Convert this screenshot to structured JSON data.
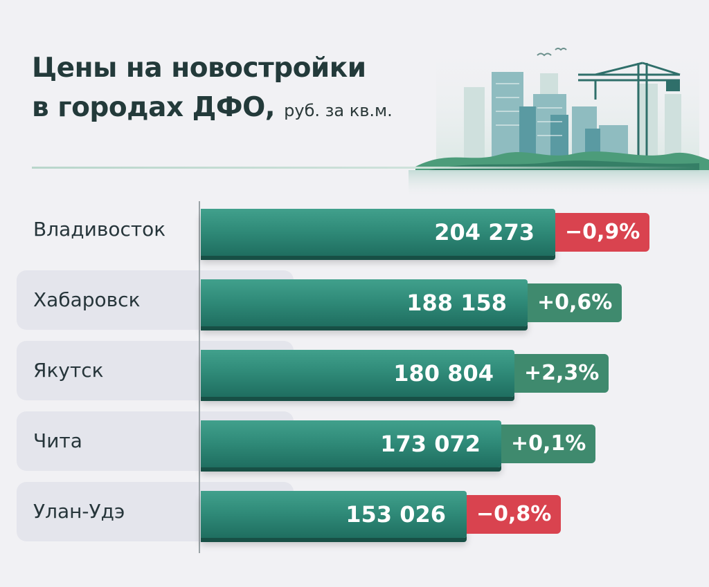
{
  "title": {
    "line1": "Цены на новостройки",
    "line2": "в городах ДФО,",
    "unit": "руб. за кв.м."
  },
  "colors": {
    "bar": "#2f8a78",
    "positive": "#3f8a6e",
    "negative": "#d9434f",
    "title": "#233a3a"
  },
  "chart_data": {
    "type": "bar",
    "orientation": "horizontal",
    "categories": [
      "Владивосток",
      "Хабаровск",
      "Якутск",
      "Чита",
      "Улан-Удэ"
    ],
    "values": [
      204273,
      188158,
      180804,
      173072,
      153026
    ],
    "value_labels": [
      "204 273",
      "188 158",
      "180 804",
      "173 072",
      "153 026"
    ],
    "changes": [
      "−0,9%",
      "+0,6%",
      "+2,3%",
      "+0,1%",
      "−0,8%"
    ],
    "change_signs": [
      "negative",
      "positive",
      "positive",
      "positive",
      "negative"
    ],
    "grid": false
  }
}
